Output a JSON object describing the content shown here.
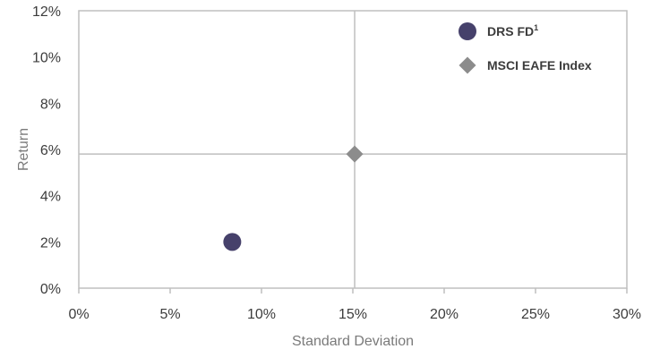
{
  "chart_data": {
    "type": "scatter",
    "title": "",
    "xlabel": "Standard Deviation",
    "ylabel": "Return",
    "xlim": [
      0,
      30
    ],
    "ylim": [
      0,
      12
    ],
    "x_tick_values": [
      0,
      5,
      10,
      15,
      20,
      25,
      30
    ],
    "y_tick_values": [
      0,
      2,
      4,
      6,
      8,
      10,
      12
    ],
    "x_tick_labels": [
      "0%",
      "5%",
      "10%",
      "15%",
      "20%",
      "25%",
      "30%"
    ],
    "y_tick_labels": [
      "0%",
      "2%",
      "4%",
      "6%",
      "8%",
      "10%",
      "12%"
    ],
    "grid": false,
    "reference_lines": {
      "x": 15.1,
      "y": 5.8
    },
    "legend_position": "top-right",
    "series": [
      {
        "name": "DRS FD",
        "name_superscript": "1",
        "marker": "circle",
        "color": "#46416b",
        "points": [
          {
            "x": 8.4,
            "y": 2.0
          }
        ]
      },
      {
        "name": "MSCI EAFE Index",
        "marker": "diamond",
        "color": "#8c8c8c",
        "points": [
          {
            "x": 15.1,
            "y": 5.8
          }
        ]
      }
    ],
    "frame_color": "#bfbfbf",
    "reference_line_color": "#bfbfbf"
  }
}
